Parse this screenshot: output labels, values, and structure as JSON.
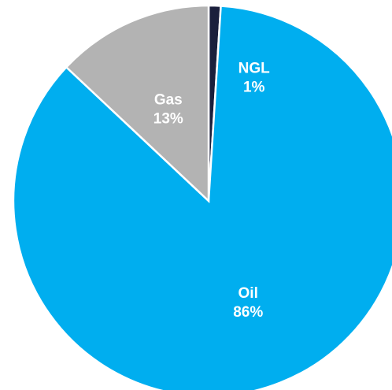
{
  "chart_data": {
    "type": "pie",
    "start": "top",
    "direction": "clockwise",
    "slices": [
      {
        "name": "Oil",
        "value": 86,
        "value_label": "86%",
        "color": "#00AEEF"
      },
      {
        "name": "Gas",
        "value": 13,
        "value_label": "13%",
        "color": "#B3B3B3"
      },
      {
        "name": "NGL",
        "value": 1,
        "value_label": "1%",
        "color": "#1A1F3C"
      }
    ]
  }
}
